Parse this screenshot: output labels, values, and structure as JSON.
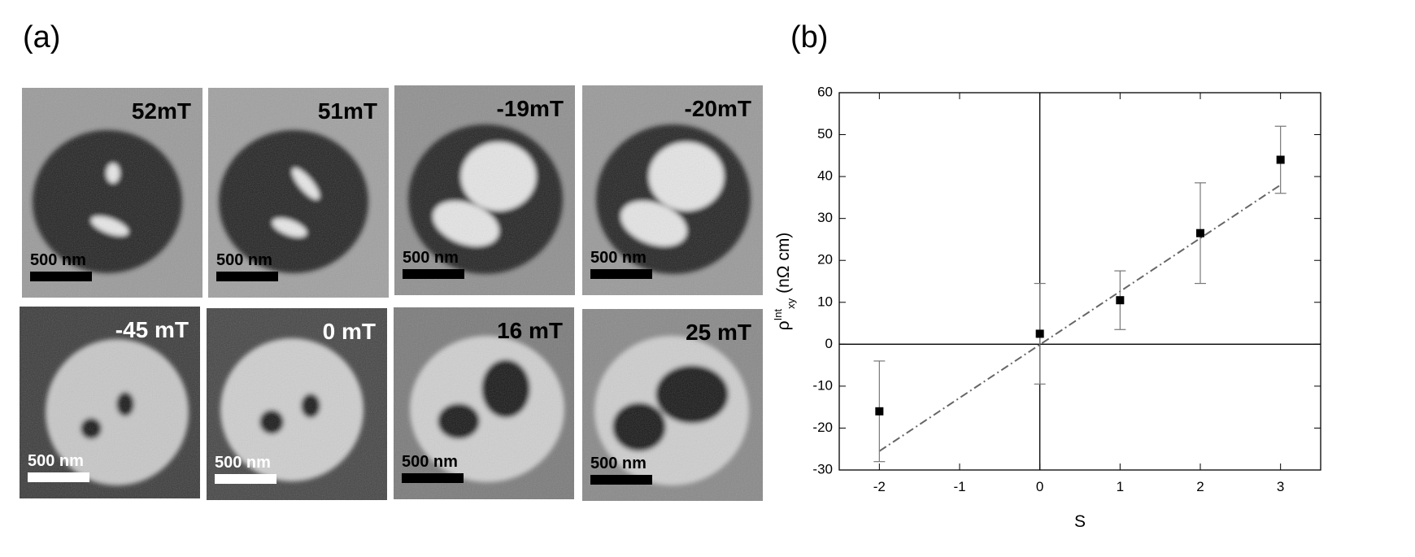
{
  "panels": {
    "a": {
      "label": "(a)",
      "images": [
        {
          "field": "52mT",
          "scale_bar": "500 nm"
        },
        {
          "field": "51mT",
          "scale_bar": "500 nm"
        },
        {
          "field": "-19mT",
          "scale_bar": "500 nm"
        },
        {
          "field": "-20mT",
          "scale_bar": "500 nm"
        },
        {
          "field": "-45 mT",
          "scale_bar": "500 nm"
        },
        {
          "field": "0 mT",
          "scale_bar": "500 nm"
        },
        {
          "field": "16 mT",
          "scale_bar": "500 nm"
        },
        {
          "field": "25 mT",
          "scale_bar": "500 nm"
        }
      ]
    },
    "b": {
      "label": "(b)"
    }
  },
  "chart_data": {
    "type": "scatter",
    "x_label": "S",
    "y_label": {
      "symbol": "ρ",
      "superscript": "Int",
      "subscript": "xy",
      "unit": "(nΩ cm)"
    },
    "x": [
      -2,
      0,
      1,
      2,
      3
    ],
    "values": [
      -16,
      2.5,
      10.5,
      26.5,
      44
    ],
    "errors": [
      12,
      12,
      7,
      12,
      8
    ],
    "color": "#000000",
    "fit_line": {
      "x": [
        -2,
        3
      ],
      "values": [
        -25.5,
        38
      ],
      "color": "#666666"
    },
    "xlim": [
      -2.5,
      3.5
    ],
    "xticks": [
      -2,
      -1,
      0,
      1,
      2,
      3
    ],
    "ylim": [
      -30,
      60
    ],
    "yticks": [
      -30,
      -20,
      -10,
      0,
      10,
      20,
      30,
      40,
      50,
      60
    ],
    "zero_lines": true,
    "grid": false
  }
}
